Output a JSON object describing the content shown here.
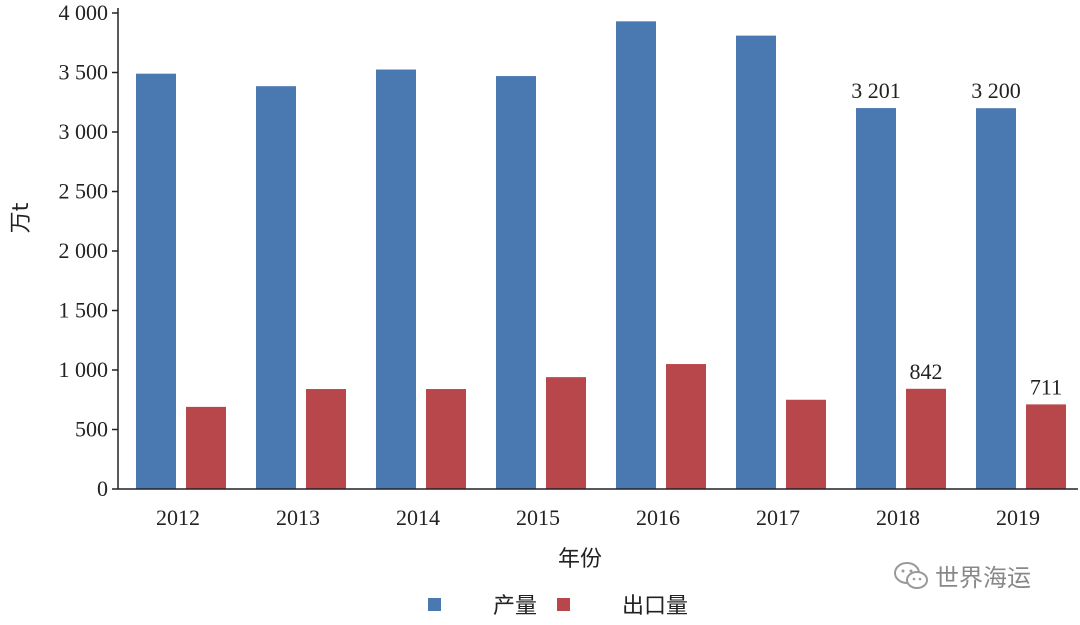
{
  "chart_data": {
    "type": "bar",
    "categories": [
      "2012",
      "2013",
      "2014",
      "2015",
      "2016",
      "2017",
      "2018",
      "2019"
    ],
    "series": [
      {
        "name": "产量",
        "values": [
          3490,
          3385,
          3525,
          3470,
          3930,
          3810,
          3201,
          3200
        ],
        "color": "#4a78b1"
      },
      {
        "name": "出口量",
        "values": [
          690,
          840,
          840,
          940,
          1050,
          750,
          842,
          711
        ],
        "color": "#b7474a"
      }
    ],
    "data_labels": [
      {
        "series": 0,
        "index": 6,
        "text": "3 201"
      },
      {
        "series": 0,
        "index": 7,
        "text": "3 200"
      },
      {
        "series": 1,
        "index": 6,
        "text": "842"
      },
      {
        "series": 1,
        "index": 7,
        "text": "711"
      }
    ],
    "ylim": [
      0,
      4000
    ],
    "yticks": [
      {
        "value": 0,
        "label": "0"
      },
      {
        "value": 500,
        "label": "500"
      },
      {
        "value": 1000,
        "label": "1 000"
      },
      {
        "value": 1500,
        "label": "1 500"
      },
      {
        "value": 2000,
        "label": "2 000"
      },
      {
        "value": 2500,
        "label": "2 500"
      },
      {
        "value": 3000,
        "label": "3 000"
      },
      {
        "value": 3500,
        "label": "3 500"
      },
      {
        "value": 4000,
        "label": "4 000"
      }
    ],
    "ylabel": "万t",
    "xlabel": "年份",
    "legend_position": "bottom"
  },
  "watermark": {
    "text": "世界海运",
    "icon": "wechat-icon"
  }
}
